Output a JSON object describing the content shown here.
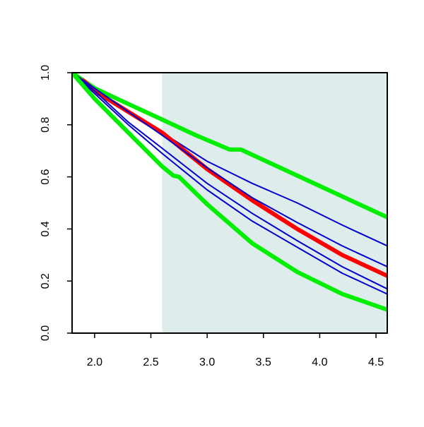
{
  "chart_data": {
    "type": "line",
    "title": "",
    "xlabel": "",
    "ylabel": "",
    "xlim": [
      1.8,
      4.6
    ],
    "ylim": [
      0.0,
      1.0
    ],
    "x_ticks": [
      2.0,
      2.5,
      3.0,
      3.5,
      4.0,
      4.5
    ],
    "x_tick_labels": [
      "2.0",
      "2.5",
      "3.0",
      "3.5",
      "4.0",
      "4.5"
    ],
    "y_ticks": [
      0.0,
      0.2,
      0.4,
      0.6,
      0.8,
      1.0
    ],
    "y_tick_labels": [
      "0.0",
      "0.2",
      "0.4",
      "0.6",
      "0.8",
      "1.0"
    ],
    "grid": false,
    "shaded_region": {
      "x_start": 2.6,
      "x_end": 4.6,
      "color": "#deecec"
    },
    "colors": {
      "red": "#ff0000",
      "green": "#00ee00",
      "blue": "#0000cc",
      "axis": "#000000"
    },
    "series": [
      {
        "color": "green",
        "width": "thick",
        "x": [
          1.8,
          2.0,
          2.3,
          2.6,
          2.9,
          3.2,
          3.3,
          3.6,
          4.0,
          4.3,
          4.6
        ],
        "y": [
          1.0,
          0.94,
          0.88,
          0.82,
          0.76,
          0.705,
          0.705,
          0.645,
          0.565,
          0.505,
          0.445
        ]
      },
      {
        "color": "blue",
        "width": "thin",
        "x": [
          1.8,
          2.0,
          2.3,
          2.6,
          3.0,
          3.4,
          3.8,
          4.2,
          4.6
        ],
        "y": [
          1.0,
          0.94,
          0.85,
          0.77,
          0.66,
          0.575,
          0.5,
          0.415,
          0.335
        ]
      },
      {
        "color": "red",
        "width": "thick",
        "x": [
          1.9,
          2.0,
          2.3,
          2.6,
          3.0,
          3.4,
          3.8,
          4.2,
          4.6
        ],
        "y": [
          0.97,
          0.93,
          0.85,
          0.77,
          0.63,
          0.51,
          0.4,
          0.3,
          0.22
        ]
      },
      {
        "color": "blue",
        "width": "thin",
        "x": [
          1.8,
          2.0,
          2.3,
          2.6,
          3.0,
          3.4,
          3.8,
          4.2,
          4.6
        ],
        "y": [
          1.0,
          0.94,
          0.85,
          0.76,
          0.635,
          0.52,
          0.425,
          0.335,
          0.255
        ]
      },
      {
        "color": "blue",
        "width": "thin",
        "x": [
          1.8,
          2.0,
          2.3,
          2.6,
          3.0,
          3.4,
          3.8,
          4.2,
          4.6
        ],
        "y": [
          1.0,
          0.93,
          0.81,
          0.71,
          0.575,
          0.46,
          0.355,
          0.255,
          0.17
        ]
      },
      {
        "color": "blue",
        "width": "thin",
        "x": [
          1.8,
          2.0,
          2.3,
          2.6,
          3.0,
          3.4,
          3.8,
          4.2,
          4.6
        ],
        "y": [
          1.0,
          0.92,
          0.8,
          0.69,
          0.55,
          0.43,
          0.33,
          0.23,
          0.15
        ]
      },
      {
        "color": "green",
        "width": "thick",
        "x": [
          1.8,
          2.0,
          2.3,
          2.6,
          2.7,
          2.75,
          3.0,
          3.4,
          3.8,
          4.2,
          4.6
        ],
        "y": [
          1.0,
          0.9,
          0.77,
          0.64,
          0.605,
          0.6,
          0.495,
          0.345,
          0.235,
          0.15,
          0.09
        ]
      }
    ]
  }
}
